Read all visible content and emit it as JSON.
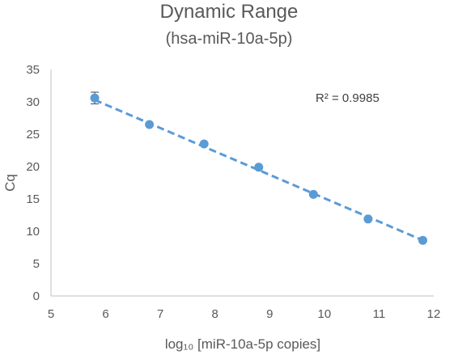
{
  "chart_data": {
    "type": "scatter",
    "title": "Dynamic Range",
    "subtitle": "(hsa-miR-10a-5p)",
    "xlabel": "log₁₀ [miR-10a-5p copies]",
    "ylabel": "Cq",
    "xlim": [
      5,
      12
    ],
    "ylim": [
      0,
      35
    ],
    "x_ticks": [
      "5",
      "6",
      "7",
      "8",
      "9",
      "10",
      "11",
      "12"
    ],
    "y_ticks": [
      "0",
      "5",
      "10",
      "15",
      "20",
      "25",
      "30",
      "35"
    ],
    "grid": false,
    "legend": "none",
    "marker_color": "#5B9BD5",
    "trendline_color": "#5B9BD5",
    "points": [
      {
        "x": 5.8,
        "y": 30.6,
        "err": 0.9
      },
      {
        "x": 6.8,
        "y": 26.5
      },
      {
        "x": 7.8,
        "y": 23.5
      },
      {
        "x": 8.8,
        "y": 19.9
      },
      {
        "x": 9.8,
        "y": 15.7
      },
      {
        "x": 10.8,
        "y": 11.9
      },
      {
        "x": 11.8,
        "y": 8.6
      }
    ],
    "trendline": {
      "type": "linear",
      "x_range": [
        5.8,
        11.8
      ],
      "y_start": 30.3,
      "y_end": 8.6
    },
    "annotation": "R² = 0.9985"
  }
}
